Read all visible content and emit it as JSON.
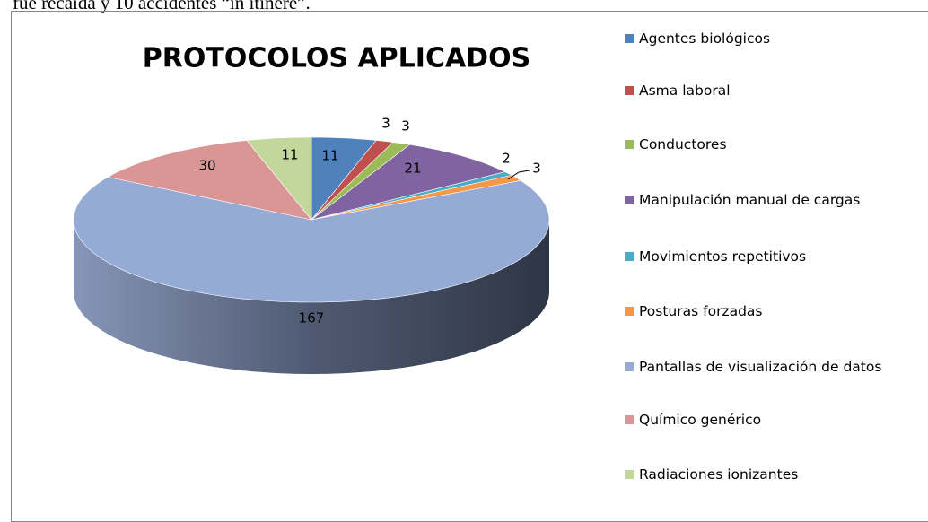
{
  "document_text": "fue recaída y 10 accidentes “in itinere”.",
  "chart_data": {
    "type": "pie",
    "title": "PROTOCOLOS APLICADOS",
    "categories": [
      "Agentes biológicos",
      "Asma laboral",
      "Conductores",
      "Manipulación manual de cargas",
      "Movimientos repetitivos",
      "Posturas forzadas",
      "Pantallas de visualización de datos",
      "Químico genérico",
      "Radiaciones ionizantes"
    ],
    "values": [
      11,
      3,
      3,
      21,
      2,
      3,
      167,
      30,
      11
    ],
    "colors": [
      "#4f81bd",
      "#c0504d",
      "#9bbb59",
      "#8064a2",
      "#4bacc6",
      "#f79646",
      "#95abd6",
      "#d99694",
      "#c3d69b"
    ],
    "legend": "right"
  }
}
